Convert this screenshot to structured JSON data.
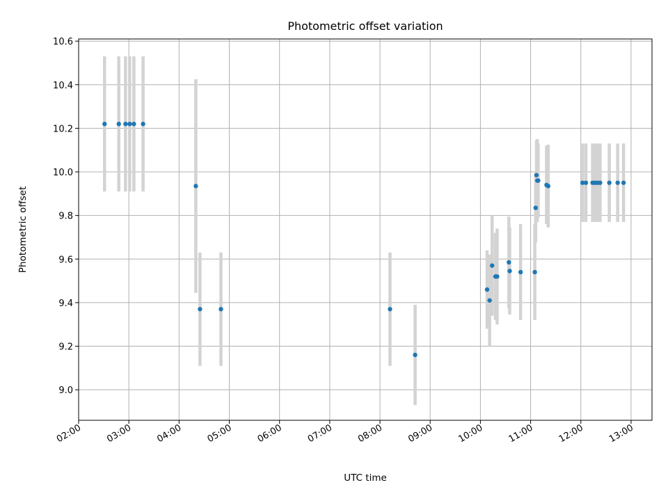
{
  "chart_data": {
    "type": "scatter",
    "title": "Photometric offset variation",
    "xlabel": "UTC time",
    "ylabel": "Photometric offset",
    "x_tick_labels": [
      "02:00",
      "03:00",
      "04:00",
      "05:00",
      "06:00",
      "07:00",
      "08:00",
      "09:00",
      "10:00",
      "11:00",
      "12:00",
      "13:00"
    ],
    "y_tick_labels": [
      "9.0",
      "9.2",
      "9.4",
      "9.6",
      "9.8",
      "10.0",
      "10.2",
      "10.4",
      "10.6"
    ],
    "xlim": [
      "02:00",
      "13:25"
    ],
    "ylim": [
      8.86,
      10.61
    ],
    "grid": true,
    "colors": {
      "point": "#1f77b4",
      "errorbar": "#d3d3d3"
    },
    "series": [
      {
        "x": [
          "02:31",
          "02:48",
          "02:56",
          "03:01",
          "03:06",
          "03:17",
          "04:20",
          "04:25",
          "04:50",
          "08:12",
          "08:42",
          "10:08",
          "10:11",
          "10:14",
          "10:18",
          "10:20",
          "10:34",
          "10:35",
          "10:48",
          "11:05",
          "11:06",
          "11:07",
          "11:08",
          "11:09",
          "11:19",
          "11:21",
          "12:02",
          "12:06",
          "12:14",
          "12:17",
          "12:20",
          "12:23",
          "12:34",
          "12:44",
          "12:51"
        ],
        "y": [
          10.22,
          10.22,
          10.22,
          10.22,
          10.22,
          10.22,
          9.935,
          9.37,
          9.37,
          9.37,
          9.16,
          9.46,
          9.41,
          9.57,
          9.52,
          9.52,
          9.585,
          9.545,
          9.54,
          9.54,
          9.835,
          9.985,
          9.96,
          9.96,
          9.94,
          9.935,
          9.95,
          9.95,
          9.95,
          9.95,
          9.95,
          9.95,
          9.95,
          9.95,
          9.95
        ],
        "yerr": [
          0.31,
          0.31,
          0.31,
          0.31,
          0.31,
          0.31,
          0.49,
          0.26,
          0.26,
          0.26,
          0.23,
          0.18,
          0.21,
          0.23,
          0.2,
          0.22,
          0.21,
          0.2,
          0.22,
          0.22,
          0.16,
          0.16,
          0.19,
          0.17,
          0.18,
          0.19,
          0.18,
          0.18,
          0.18,
          0.18,
          0.18,
          0.18,
          0.18,
          0.18,
          0.18
        ]
      }
    ]
  }
}
